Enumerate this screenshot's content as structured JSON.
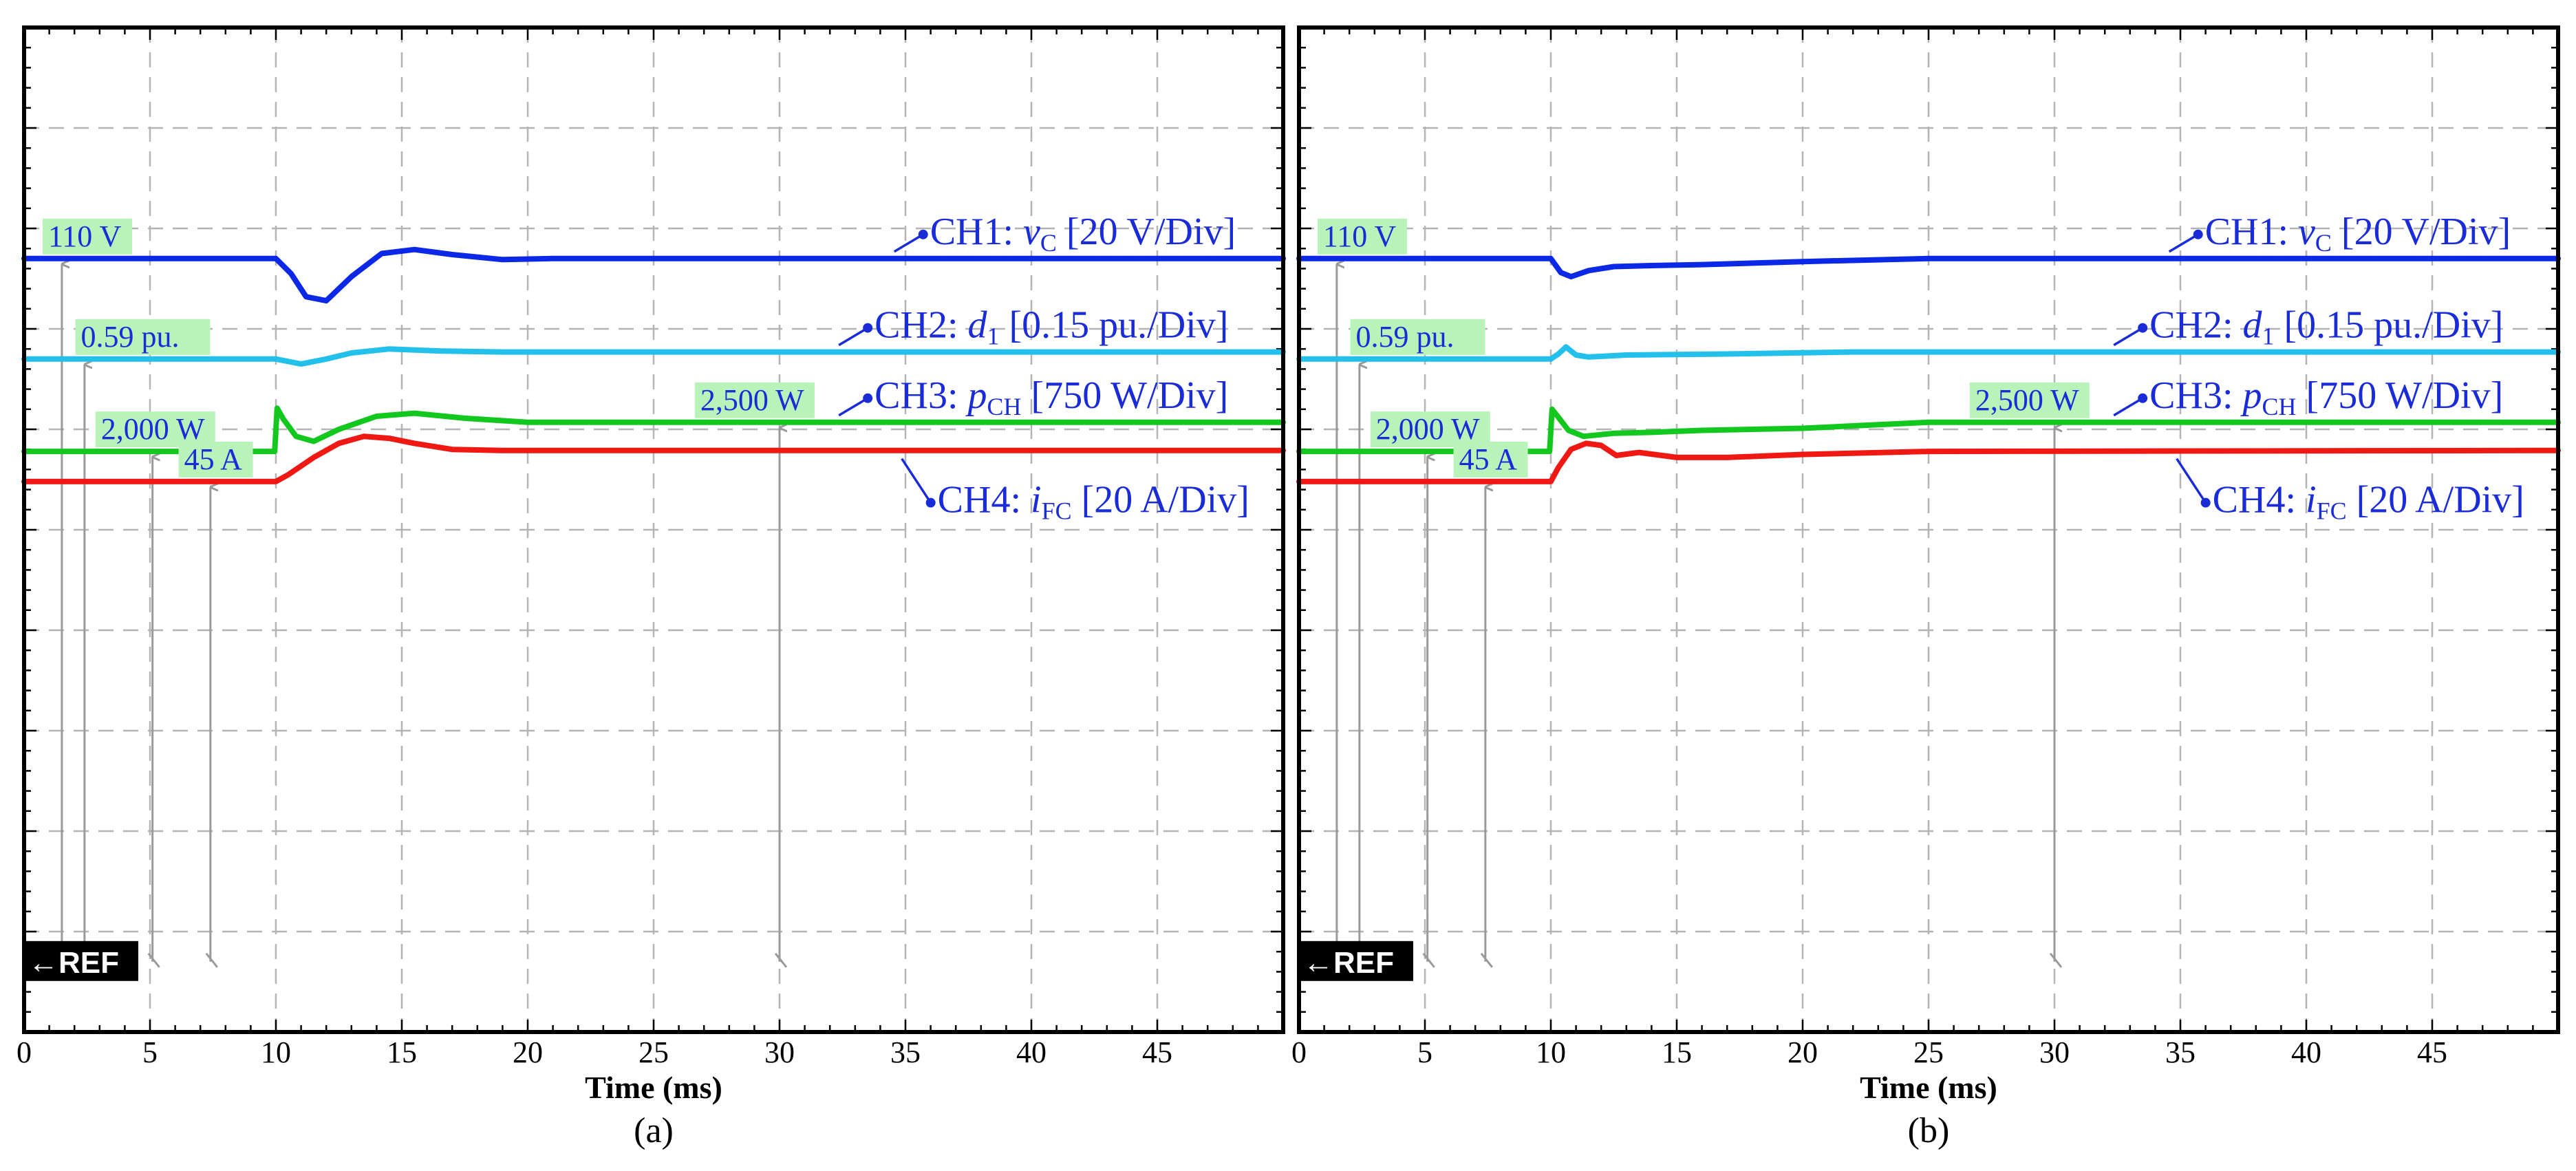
{
  "chart_data": [
    {
      "type": "line",
      "caption": "(a)",
      "xlabel": "Time (ms)",
      "xlim": [
        0,
        50
      ],
      "xticks": [
        "0",
        "5",
        "10",
        "15",
        "20",
        "25",
        "30",
        "35",
        "40",
        "45"
      ],
      "ydivisions": 10,
      "ref_marker": "←REF",
      "value_labels": [
        {
          "text": "110 V",
          "x_ms": 0.9,
          "arrow_x_ms": 1.5,
          "series": "CH1"
        },
        {
          "text": "0.59 pu.",
          "x_ms": 2.2,
          "arrow_x_ms": 2.4,
          "series": "CH2"
        },
        {
          "text": "2,500 W",
          "x_ms": 26.8,
          "arrow_x_ms": 30.0,
          "series": "CH3"
        },
        {
          "text": "2,000 W",
          "x_ms": 3.0,
          "arrow_x_ms": 5.1,
          "series": "CH3"
        },
        {
          "text": "45 A",
          "x_ms": 6.3,
          "arrow_x_ms": 7.4,
          "series": "CH4"
        }
      ],
      "series": [
        {
          "name": "CH1",
          "color": "#0a28e6",
          "label_prefix": "CH1: ",
          "sym": "v",
          "sub": "C",
          "scale": "[20 V/Div]",
          "label_anchor_ms": 34.5,
          "x": [
            0,
            10,
            10.6,
            11.2,
            12.0,
            13.0,
            14.2,
            15.5,
            17.0,
            19.0,
            21.0,
            50
          ],
          "y_div": [
            7.7,
            7.7,
            7.55,
            7.32,
            7.28,
            7.52,
            7.75,
            7.79,
            7.74,
            7.69,
            7.7,
            7.7
          ]
        },
        {
          "name": "CH2",
          "color": "#23c0ec",
          "label_prefix": "CH2: ",
          "sym": "d",
          "sub": "1",
          "scale": "[0.15 pu./Div]",
          "label_anchor_ms": 32.3,
          "x": [
            0,
            10,
            11.0,
            12.0,
            13.0,
            14.5,
            16.5,
            19.0,
            50
          ],
          "y_div": [
            6.7,
            6.7,
            6.65,
            6.7,
            6.76,
            6.8,
            6.78,
            6.77,
            6.77
          ]
        },
        {
          "name": "CH3",
          "color": "#12c81e",
          "label_prefix": "CH3: ",
          "sym": "p",
          "sub": "CH",
          "scale": "[750 W/Div]",
          "label_anchor_ms": 32.3,
          "x": [
            0,
            9.95,
            10.05,
            10.3,
            10.8,
            11.5,
            12.5,
            14.0,
            15.5,
            17.5,
            20.0,
            23.0,
            50
          ],
          "y_div": [
            5.78,
            5.78,
            6.21,
            6.1,
            5.93,
            5.88,
            6.0,
            6.13,
            6.16,
            6.11,
            6.07,
            6.07,
            6.07
          ]
        },
        {
          "name": "CH4",
          "color": "#ef1812",
          "label_prefix": "CH4: ",
          "sym": "i",
          "sub": "FC",
          "scale": "[20 A/Div]",
          "label_anchor_ms": 34.8,
          "x": [
            0,
            10,
            10.5,
            11.5,
            12.5,
            13.5,
            14.5,
            15.5,
            17.0,
            19.0,
            50
          ],
          "y_div": [
            5.48,
            5.48,
            5.55,
            5.72,
            5.86,
            5.93,
            5.91,
            5.86,
            5.8,
            5.79,
            5.79
          ]
        }
      ]
    },
    {
      "type": "line",
      "caption": "(b)",
      "xlabel": "Time (ms)",
      "xlim": [
        0,
        50
      ],
      "xticks": [
        "0",
        "5",
        "10",
        "15",
        "20",
        "25",
        "30",
        "35",
        "40",
        "45"
      ],
      "ydivisions": 10,
      "ref_marker": "←REF",
      "value_labels": [
        {
          "text": "110 V",
          "x_ms": 0.9,
          "arrow_x_ms": 1.5,
          "series": "CH1"
        },
        {
          "text": "0.59 pu.",
          "x_ms": 2.2,
          "arrow_x_ms": 2.4,
          "series": "CH2"
        },
        {
          "text": "2,500 W",
          "x_ms": 26.8,
          "arrow_x_ms": 30.0,
          "series": "CH3"
        },
        {
          "text": "2,000 W",
          "x_ms": 3.0,
          "arrow_x_ms": 5.1,
          "series": "CH3"
        },
        {
          "text": "45 A",
          "x_ms": 6.3,
          "arrow_x_ms": 7.4,
          "series": "CH4"
        }
      ],
      "series": [
        {
          "name": "CH1",
          "color": "#0a28e6",
          "label_prefix": "CH1: ",
          "sym": "v",
          "sub": "C",
          "scale": "[20 V/Div]",
          "label_anchor_ms": 34.5,
          "x": [
            0,
            10,
            10.4,
            10.8,
            11.5,
            12.5,
            14.0,
            16.0,
            20.0,
            25.0,
            50
          ],
          "y_div": [
            7.7,
            7.7,
            7.56,
            7.52,
            7.58,
            7.62,
            7.63,
            7.64,
            7.67,
            7.7,
            7.7
          ]
        },
        {
          "name": "CH2",
          "color": "#23c0ec",
          "label_prefix": "CH2: ",
          "sym": "d",
          "sub": "1",
          "scale": "[0.15 pu./Div]",
          "label_anchor_ms": 32.3,
          "x": [
            0,
            10,
            10.3,
            10.6,
            11.0,
            11.5,
            13.0,
            17.0,
            22.0,
            50
          ],
          "y_div": [
            6.7,
            6.7,
            6.75,
            6.82,
            6.74,
            6.72,
            6.74,
            6.75,
            6.77,
            6.77
          ]
        },
        {
          "name": "CH3",
          "color": "#12c81e",
          "label_prefix": "CH3: ",
          "sym": "p",
          "sub": "CH",
          "scale": "[750 W/Div]",
          "label_anchor_ms": 32.3,
          "x": [
            0,
            9.95,
            10.05,
            10.3,
            10.7,
            11.3,
            12.5,
            14.0,
            16.0,
            20.0,
            25.0,
            50
          ],
          "y_div": [
            5.78,
            5.78,
            6.2,
            6.12,
            5.99,
            5.93,
            5.96,
            5.97,
            5.99,
            6.01,
            6.07,
            6.07
          ]
        },
        {
          "name": "CH4",
          "color": "#ef1812",
          "label_prefix": "CH4: ",
          "sym": "i",
          "sub": "FC",
          "scale": "[20 A/Div]",
          "label_anchor_ms": 34.8,
          "x": [
            0,
            10,
            10.3,
            10.8,
            11.4,
            12.0,
            12.6,
            13.5,
            15.0,
            17.0,
            20.0,
            25.0,
            50
          ],
          "y_div": [
            5.48,
            5.48,
            5.62,
            5.8,
            5.86,
            5.84,
            5.74,
            5.77,
            5.72,
            5.72,
            5.75,
            5.78,
            5.79
          ]
        }
      ]
    }
  ]
}
